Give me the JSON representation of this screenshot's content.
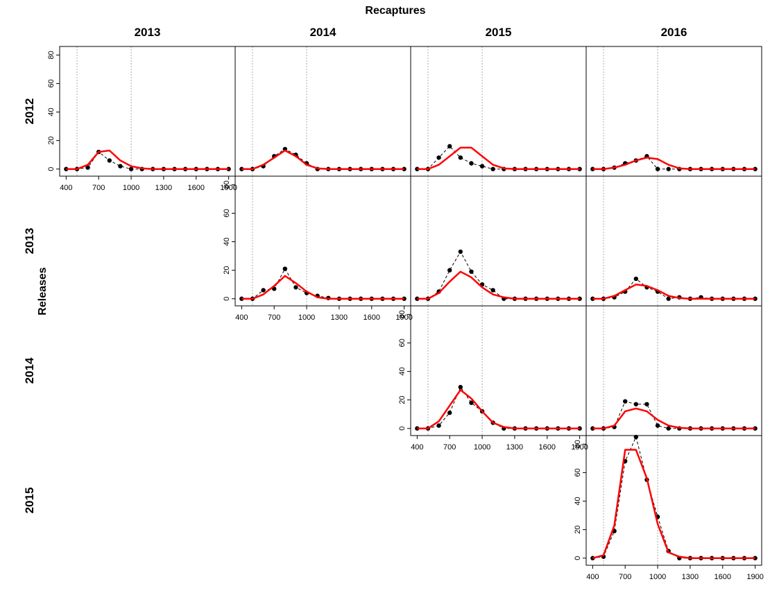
{
  "figure": {
    "title": "Recaptures",
    "ylabel": "Releases",
    "columns": [
      "2013",
      "2014",
      "2015",
      "2016"
    ],
    "rows": [
      "2012",
      "2013",
      "2014",
      "2015"
    ]
  },
  "chart_data": [
    {
      "type": "line",
      "x": [
        400,
        500,
        600,
        700,
        800,
        900,
        1000,
        1100,
        1200,
        1300,
        1400,
        1500,
        1600,
        1700,
        1800,
        1900
      ],
      "xlim": [
        340,
        1960
      ],
      "ylim": [
        -5,
        86
      ],
      "xticks": [
        400,
        700,
        1000,
        1300,
        1600,
        1900
      ],
      "yticks": [
        0,
        20,
        40,
        60,
        80
      ],
      "vlines": [
        500,
        1000
      ],
      "series": [
        {
          "color": "#000000",
          "markers": true,
          "dashed": true,
          "values": [
            0,
            0,
            1,
            12,
            6,
            2,
            0,
            0,
            0,
            0,
            0,
            0,
            0,
            0,
            0,
            0
          ]
        },
        {
          "color": "#ff0000",
          "values": [
            0,
            0,
            3,
            12,
            13,
            6,
            2,
            0.5,
            0,
            0,
            0,
            0,
            0,
            0,
            0,
            0
          ]
        }
      ]
    },
    {
      "type": "line",
      "x": [
        400,
        500,
        600,
        700,
        800,
        900,
        1000,
        1100,
        1200,
        1300,
        1400,
        1500,
        1600,
        1700,
        1800,
        1900
      ],
      "xlim": [
        340,
        1960
      ],
      "ylim": [
        -5,
        86
      ],
      "vlines": [
        500,
        1000
      ],
      "series": [
        {
          "color": "#000000",
          "markers": true,
          "dashed": true,
          "values": [
            0,
            0,
            2,
            9,
            14,
            10,
            4,
            0,
            0,
            0,
            0,
            0,
            0,
            0,
            0,
            0
          ]
        },
        {
          "color": "#ff0000",
          "values": [
            0,
            0,
            3,
            8,
            13,
            9,
            3,
            0.5,
            0,
            0,
            0,
            0,
            0,
            0,
            0,
            0
          ]
        }
      ]
    },
    {
      "type": "line",
      "x": [
        400,
        500,
        600,
        700,
        800,
        900,
        1000,
        1100,
        1200,
        1300,
        1400,
        1500,
        1600,
        1700,
        1800,
        1900
      ],
      "xlim": [
        340,
        1960
      ],
      "ylim": [
        -5,
        86
      ],
      "vlines": [
        500,
        1000
      ],
      "series": [
        {
          "color": "#000000",
          "markers": true,
          "dashed": true,
          "values": [
            0,
            0,
            8,
            16,
            8,
            4,
            2,
            0,
            0,
            0,
            0,
            0,
            0,
            0,
            0,
            0
          ]
        },
        {
          "color": "#ff0000",
          "values": [
            0,
            0,
            3,
            9,
            15,
            15,
            9,
            3,
            0.5,
            0,
            0,
            0,
            0,
            0,
            0,
            0
          ]
        }
      ]
    },
    {
      "type": "line",
      "x": [
        400,
        500,
        600,
        700,
        800,
        900,
        1000,
        1100,
        1200,
        1300,
        1400,
        1500,
        1600,
        1700,
        1800,
        1900
      ],
      "xlim": [
        340,
        1960
      ],
      "ylim": [
        -5,
        86
      ],
      "vlines": [
        500,
        1000
      ],
      "series": [
        {
          "color": "#000000",
          "markers": true,
          "dashed": true,
          "values": [
            0,
            0,
            1,
            4,
            6,
            9,
            0,
            0,
            0,
            0,
            0,
            0,
            0,
            0,
            0,
            0
          ]
        },
        {
          "color": "#ff0000",
          "values": [
            0,
            0,
            1,
            3,
            6,
            8,
            7,
            3,
            0.5,
            0,
            0,
            0,
            0,
            0,
            0,
            0
          ]
        }
      ]
    },
    {
      "type": "line",
      "x": [
        400,
        500,
        600,
        700,
        800,
        900,
        1000,
        1100,
        1200,
        1300,
        1400,
        1500,
        1600,
        1700,
        1800,
        1900
      ],
      "xlim": [
        340,
        1960
      ],
      "ylim": [
        -5,
        86
      ],
      "xticks": [
        400,
        700,
        1000,
        1300,
        1600,
        1900
      ],
      "yticks": [
        0,
        20,
        40,
        60,
        80
      ],
      "vlines": [
        500,
        1000
      ],
      "series": [
        {
          "color": "#000000",
          "markers": true,
          "dashed": true,
          "values": [
            0,
            0,
            6,
            7,
            21,
            8,
            4,
            2,
            0.5,
            0,
            0,
            0,
            0,
            0,
            0,
            0
          ]
        },
        {
          "color": "#ff0000",
          "values": [
            0,
            0,
            3,
            9,
            16,
            11,
            5,
            1,
            0,
            0,
            0,
            0,
            0,
            0,
            0,
            0
          ]
        }
      ]
    },
    {
      "type": "line",
      "x": [
        400,
        500,
        600,
        700,
        800,
        900,
        1000,
        1100,
        1200,
        1300,
        1400,
        1500,
        1600,
        1700,
        1800,
        1900
      ],
      "xlim": [
        340,
        1960
      ],
      "ylim": [
        -5,
        86
      ],
      "vlines": [
        500,
        1000
      ],
      "series": [
        {
          "color": "#000000",
          "markers": true,
          "dashed": true,
          "values": [
            0,
            0,
            5,
            20,
            33,
            19,
            10,
            6,
            0,
            0,
            0,
            0,
            0,
            0,
            0,
            0
          ]
        },
        {
          "color": "#ff0000",
          "values": [
            0,
            0,
            4,
            12,
            19,
            15,
            8,
            3,
            1,
            0,
            0,
            0,
            0,
            0,
            0,
            0
          ]
        }
      ]
    },
    {
      "type": "line",
      "x": [
        400,
        500,
        600,
        700,
        800,
        900,
        1000,
        1100,
        1200,
        1300,
        1400,
        1500,
        1600,
        1700,
        1800,
        1900
      ],
      "xlim": [
        340,
        1960
      ],
      "ylim": [
        -5,
        86
      ],
      "vlines": [
        500,
        1000
      ],
      "series": [
        {
          "color": "#000000",
          "markers": true,
          "dashed": true,
          "values": [
            0,
            0,
            1,
            5,
            14,
            8,
            5,
            0,
            1,
            0,
            1,
            0,
            0,
            0,
            0,
            0
          ]
        },
        {
          "color": "#ff0000",
          "values": [
            0,
            0,
            2,
            6,
            10,
            9,
            6,
            2,
            0.5,
            0,
            0,
            0,
            0,
            0,
            0,
            0
          ]
        }
      ]
    },
    {
      "type": "line",
      "x": [
        400,
        500,
        600,
        700,
        800,
        900,
        1000,
        1100,
        1200,
        1300,
        1400,
        1500,
        1600,
        1700,
        1800,
        1900
      ],
      "xlim": [
        340,
        1960
      ],
      "ylim": [
        -5,
        86
      ],
      "xticks": [
        400,
        700,
        1000,
        1300,
        1600,
        1900
      ],
      "yticks": [
        0,
        20,
        40,
        60,
        80
      ],
      "vlines": [
        500,
        1000
      ],
      "series": [
        {
          "color": "#000000",
          "markers": true,
          "dashed": true,
          "values": [
            0,
            0,
            2,
            11,
            29,
            18,
            12,
            4,
            0,
            0,
            0,
            0,
            0,
            0,
            0,
            0
          ]
        },
        {
          "color": "#ff0000",
          "values": [
            0,
            0,
            5,
            16,
            27,
            21,
            12,
            4,
            1,
            0,
            0,
            0,
            0,
            0,
            0,
            0
          ]
        }
      ]
    },
    {
      "type": "line",
      "x": [
        400,
        500,
        600,
        700,
        800,
        900,
        1000,
        1100,
        1200,
        1300,
        1400,
        1500,
        1600,
        1700,
        1800,
        1900
      ],
      "xlim": [
        340,
        1960
      ],
      "ylim": [
        -5,
        86
      ],
      "vlines": [
        500,
        1000
      ],
      "series": [
        {
          "color": "#000000",
          "markers": true,
          "dashed": true,
          "values": [
            0,
            0,
            1,
            19,
            17,
            17,
            2,
            0,
            0,
            0,
            0,
            0,
            0,
            0,
            0,
            0
          ]
        },
        {
          "color": "#ff0000",
          "values": [
            0,
            0,
            2,
            12,
            14,
            12,
            6,
            2,
            0.5,
            0,
            0,
            0,
            0,
            0,
            0,
            0
          ]
        }
      ]
    },
    {
      "type": "line",
      "x": [
        400,
        500,
        600,
        700,
        800,
        900,
        1000,
        1100,
        1200,
        1300,
        1400,
        1500,
        1600,
        1700,
        1800,
        1900
      ],
      "xlim": [
        340,
        1960
      ],
      "ylim": [
        -5,
        86
      ],
      "xticks": [
        400,
        700,
        1000,
        1300,
        1600,
        1900
      ],
      "yticks": [
        0,
        20,
        40,
        60,
        80
      ],
      "vlines": [
        500,
        1000
      ],
      "series": [
        {
          "color": "#000000",
          "markers": true,
          "dashed": true,
          "values": [
            0,
            1,
            19,
            68,
            85,
            55,
            29,
            5,
            0,
            0,
            0,
            0,
            0,
            0,
            0,
            0
          ]
        },
        {
          "color": "#ff0000",
          "values": [
            0,
            2,
            23,
            76,
            76,
            56,
            24,
            4,
            1,
            0,
            0,
            0,
            0,
            0,
            0,
            0
          ]
        }
      ]
    }
  ]
}
